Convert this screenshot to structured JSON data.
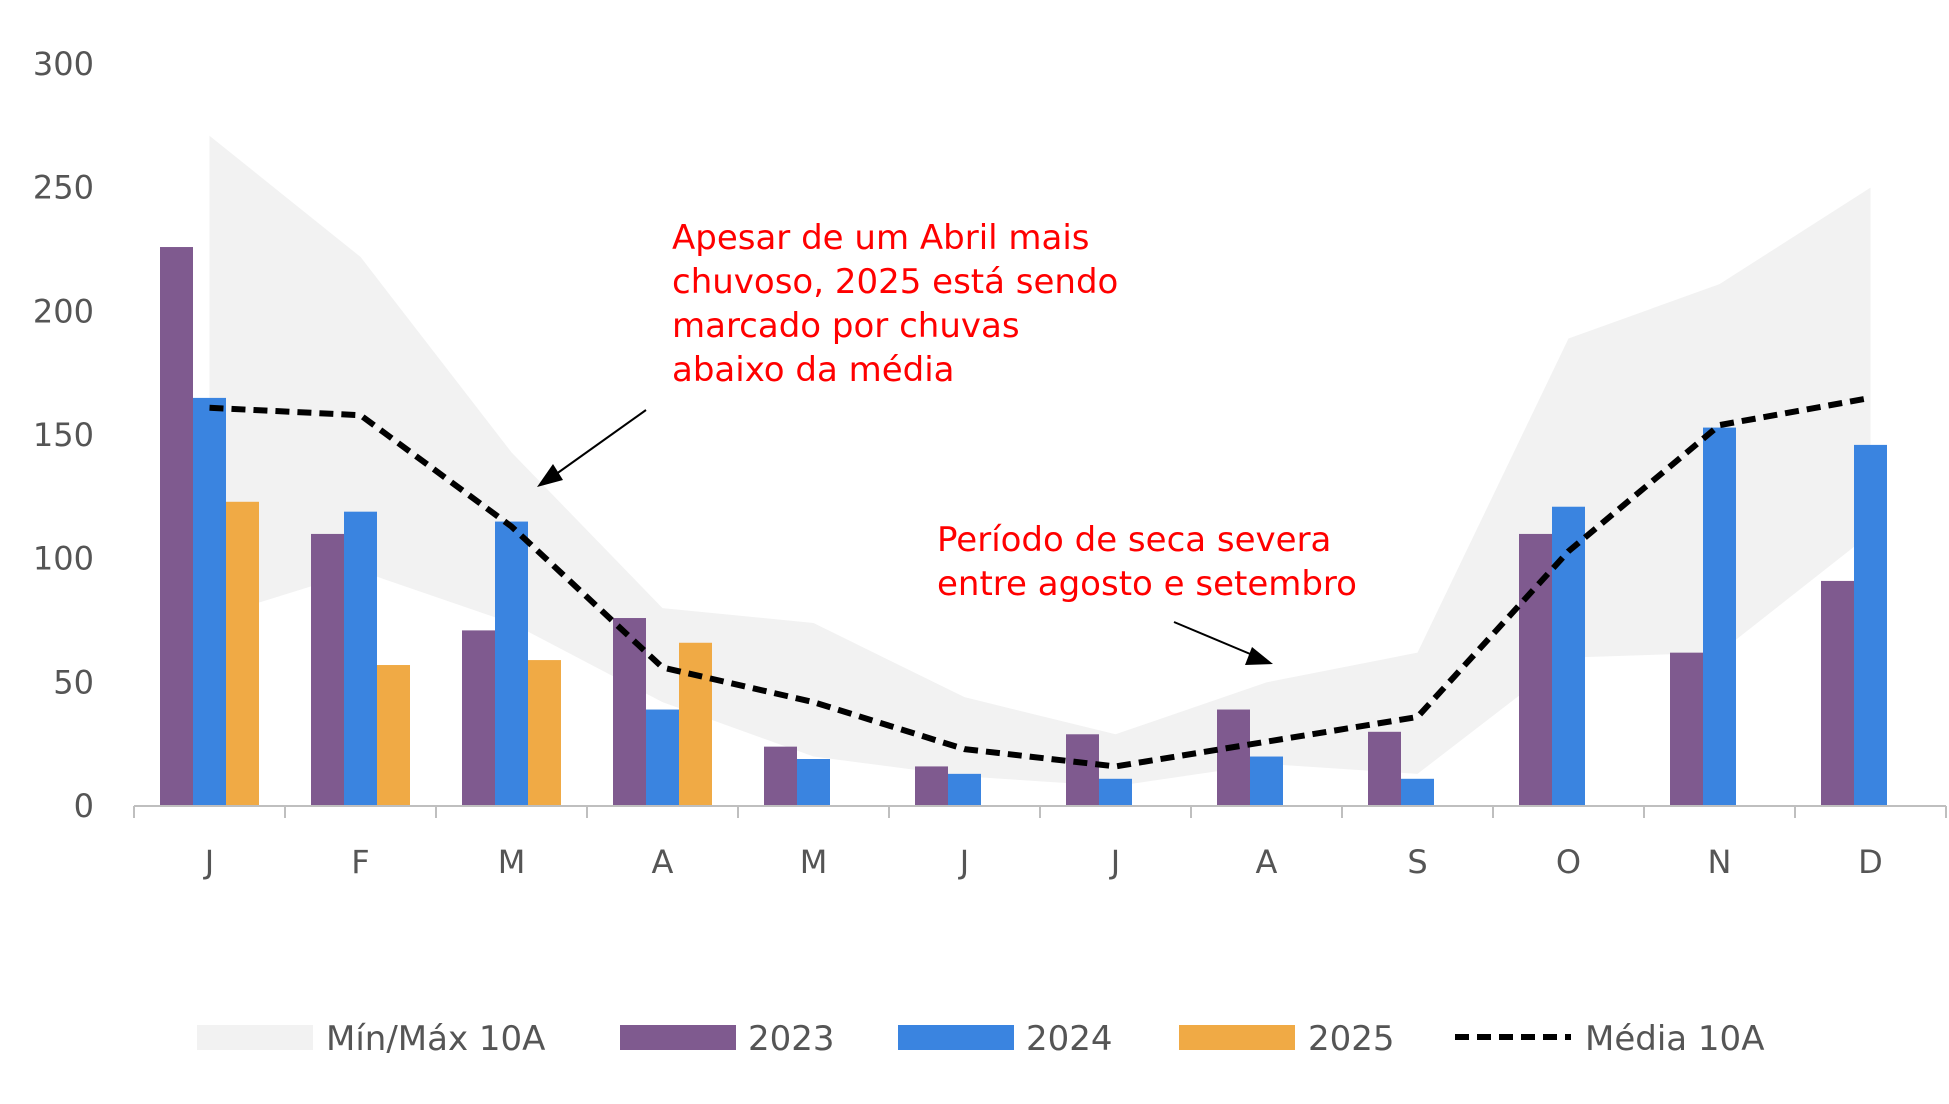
{
  "chart_data": {
    "type": "bar",
    "categories": [
      "J",
      "F",
      "M",
      "A",
      "M",
      "J",
      "J",
      "A",
      "S",
      "O",
      "N",
      "D"
    ],
    "ylim": [
      0,
      300
    ],
    "yticks": [
      0,
      50,
      100,
      150,
      200,
      250,
      300
    ],
    "grid": false,
    "legend_position": "bottom",
    "band": {
      "name": "Mín/Máx 10A",
      "color": "#f2f2f2",
      "min": [
        76,
        95,
        74,
        42,
        20,
        12,
        8,
        17,
        13,
        60,
        62,
        110
      ],
      "max": [
        271,
        222,
        143,
        80,
        74,
        44,
        29,
        50,
        62,
        189,
        211,
        250
      ]
    },
    "series": [
      {
        "name": "2023",
        "color": "#7f5a8f",
        "values": [
          226,
          110,
          71,
          76,
          24,
          16,
          29,
          39,
          30,
          110,
          62,
          91
        ]
      },
      {
        "name": "2024",
        "color": "#3a84e0",
        "values": [
          165,
          119,
          115,
          39,
          19,
          13,
          11,
          20,
          11,
          121,
          153,
          146
        ]
      },
      {
        "name": "2025",
        "color": "#f0aa45",
        "values": [
          123,
          57,
          59,
          66,
          null,
          null,
          null,
          null,
          null,
          null,
          null,
          null
        ]
      }
    ],
    "line": {
      "name": "Média 10A",
      "color": "#000000",
      "values": [
        161,
        158,
        113,
        56,
        42,
        23,
        16,
        26,
        36,
        103,
        154,
        165
      ]
    },
    "annotations": [
      {
        "lines": [
          "Apesar de um Abril mais",
          "chuvoso, 2025 está sendo",
          "marcado por chuvas",
          "abaixo da média"
        ],
        "color": "#ff0000"
      },
      {
        "lines": [
          "Período de seca severa",
          "entre agosto e setembro"
        ],
        "color": "#ff0000"
      }
    ]
  }
}
